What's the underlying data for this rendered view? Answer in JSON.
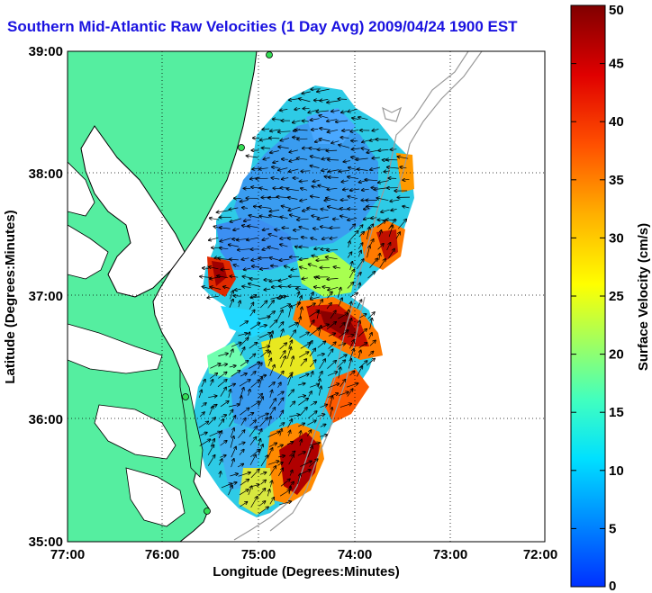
{
  "title": "Southern Mid-Atlantic Raw Velocities (1 Day Avg) 2009/04/24 1900 EST",
  "axes": {
    "xlabel": "Longitude (Degrees:Minutes)",
    "ylabel": "Latitude (Degrees:Minutes)",
    "x_ticks": [
      "77:00",
      "76:00",
      "75:00",
      "74:00",
      "73:00",
      "72:00"
    ],
    "y_ticks": [
      "39:00",
      "38:00",
      "37:00",
      "36:00",
      "35:00"
    ]
  },
  "colorbar": {
    "label": "Surface Velocity (cm/s)",
    "ticks": [
      "50",
      "45",
      "40",
      "35",
      "30",
      "25",
      "20",
      "15",
      "10",
      "5",
      "0"
    ],
    "min": 0,
    "max": 50,
    "colormap": [
      "#0000ff",
      "#0080ff",
      "#00ffff",
      "#80ff80",
      "#ffff00",
      "#ff8000",
      "#ff0000",
      "#800000"
    ]
  },
  "colors": {
    "land": "#55eea0",
    "coast": "#000000",
    "grid": "#000000",
    "bathymetry": "#9a9a9a"
  }
}
